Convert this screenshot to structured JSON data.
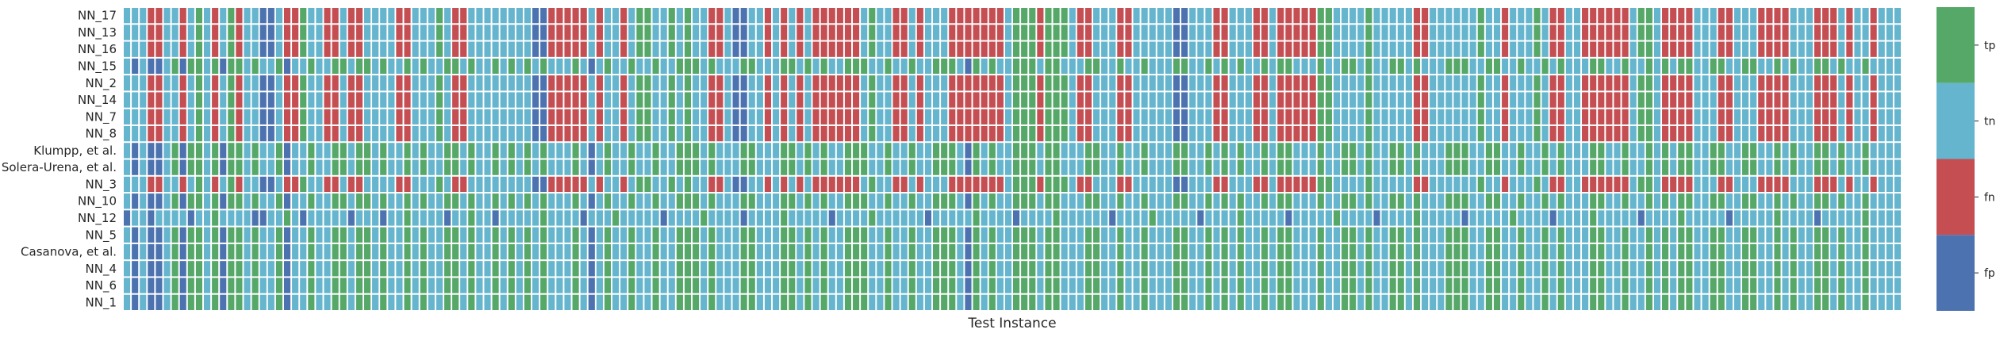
{
  "chart_data": {
    "type": "heatmap",
    "xlabel": "Test Instance",
    "rows": [
      "NN_17",
      "NN_13",
      "NN_16",
      "NN_15",
      "NN_2",
      "NN_14",
      "NN_7",
      "NN_8",
      "Klumpp, et al.",
      "Solera-Urena, et al.",
      "NN_3",
      "NN_10",
      "NN_12",
      "NN_5",
      "Casanova, et al.",
      "NN_4",
      "NN_6",
      "NN_1"
    ],
    "n_columns": 222,
    "categories": [
      "fp",
      "fn",
      "tn",
      "tp"
    ],
    "colorbar_labels": [
      "tp",
      "tn",
      "fn",
      "fp"
    ],
    "colors": {
      "tp": "#55a868",
      "tn": "#64b5cd",
      "fn": "#c44e52",
      "fp": "#4c72b0"
    },
    "cells": [
      "TTTRRTTRTGTRTGRTTBBTRRGTTRRTRRTTTTRRTTTGTRRTTTTTTTTBBRRRRRTRTTRTGGTTGTGTTRRTBBTTRTRTRTRRRRRRTGTTRRTRTTTRRRRRRRTGGGRGGGTRRTTTRRTTTTTBBTTTRRTTTRRTRRRRRGGTTTTGTTTTTRRTTTTTTGTTRTTTGTRRTTRRRRRRTGGTRRRRTTTRRTTTRRRRTTTRRRTRTTR",
      "TTTRRTTRTGTRTGRTTBBTRRGTTRRTRRTTTTRRTTTGTRRTTTTTTTTBBRRRRRTRTTRTGGTTGTGTTRRTBBTTRTRTRTRRRRRRTGTTRRTRTTTRRRRRRRTGGGRGGGTRRTTTRRTTTTTBBTTTRRTTTRRTRRRRRGGTTTTGTTTTTRRTTTTTTGTTRTTTGTRRTTRRRRRRTGGTRRRRTTTRRTTTRRRRTTTRRRTRTTR",
      "TTTRRTTRTGTRTGRTTBBTRRGTTRRTRRTTTTRRTTTGTRRTTTTTTTTBBRRRRRTRTTRTGGTTGTGTTRRTBBTTRTRTRTRRRRRRTGTTRRTRTTTRRRRRRRTGGGRGGGTRRTTTRRTTTTTBBTTTRRTTTRRTRRRRRGGTTTTGTTTTTRRTTTTTTGTTRTTTGTRRTTRRRRRRTGGTRRRRTTTRRTTTRRRRTTTRRRTRTTR",
      "TBTBBTGBGGTGBGGTGTTGBTTGTTGGTGGTGTTGTGTTGGTGTTGTGTGTGTTTGTBTGTTGTTGTTGGGTGTTTGGTTTGGTGTGTTGGGTTGTTGTTGGGTBGTGTTGGGTGGTTTGGTTGTTGTTTGGTTGTGTGTTGTGGTTTGTTGGTGTTGGTGTTTGGGTTGGTTGTTGTGTTTGGTTGTTGTGTGGTTGGTTGGTTGTGTTGGTGTTG",
      "TTTRRTTRTGTRTGRTTBBTRRGTTRRTRRTTTTRRTTTGTRRTTTTTTTTBBRRRRRTRTTRTGGTTGTGTTRRTBBTTRTRTRTRRRRRRTGTTRRTRTTTRRRRRRRTGGGRGGGTRRTTTRRTTTTTBBTTTRRTTTRRTRRRRRGGTTTTGTTTTTRRTTTTTTGTTRTTTGTRRTTRRRRRRTGGTRRRRTTTRRTTTRRRRTTTRRRTRTTR",
      "TTTRRTTRTGTRTGRTTBBTRRGTTRRTRRTTTTRRTTTGTRRTTTTTTTTBBRRRRRTRTTRTGGTTGTGTTRRTBBTTRTRTRTRRRRRRTGTTRRTRTTTRRRRRRRTGGGRGGGTRRTTTRRTTTTTBBTTTRRTTTRRTRRRRRGGTTTTGTTTTTRRTTTTTTGTTRTTTGTRRTTRRRRRRTGGTRRRRTTTRRTTTRRRRTTTRRRTRTTR",
      "TTTRRTTRTGTRTGRTTBBTRRGTTRRTRRTTTTRRTTTGTRRTTTTTTTTBBRRRRRTRTTRTGGTTGTGTTRRTBBTTRTRTRTRRRRRRTGTTRRTRTTTRRRRRRRTGGGRGGGTRRTTTRRTTTTTBBTTTRRTTTRRTRRRRRGGTTTTGTTTTTRRTTTTTTGTTRTTTGTRRTTRRRRRRTGGTRRRRTTTRRTTTRRRRTTTRRRTRTTR",
      "TTTRRTTRTGTRTGRTTBBTRRGTTRRTRRTTTTRRTTTGTRRTTTTTTTTBBRRRRRTRTTRTGGTTGTGTTRRTBBTTRTRTRTRRRRRRTGTTRRTRTTTRRRRRRRTGGGRGGGTRRTTTRRTTTTTBBTTTRRTTTRRTRRRRRGGTTTTGTTTTTRRTTTTTTGTTRTTTGTRRTTRRRRRRTGGTRRRRTTTRRTTTRRRRTTTRRRTRTTR",
      "TBTBBTGBGGTGBGGTGTTGBTTGTTGGTGGTGTTGTGTTGGTGTTGTGTGTGTTTGTBTGTTGTTGTTGGGTGTTTGGTTTGGTGTGTTGGGTTGTTGTTGGGTBGTGTTGGGTGGTTTGGTTGTTGTTTGGTTGTGTGTTGTGGTTTGTTGGTGTTGGTGTTTGGGTTGGTTGTTGTGTTTGGTTGTTGTGTGGTTGGTTGGTTGTGTTGGTGTTG",
      "TBTBBTGBGGTGBGGTGTTGBTTGTTGGTGGTGTTGTGTTGGTGTTGTGTGTGTTTGTBTGTTGTTGTTGGGTGTTTGGTTTGGTGTGTTGGGTTGTTGTTGGGTBGTGTTGGGTGGTTTGGTTGTTGTTTGGTTGTGTGTTGTGGTTTGTTGGTGTTGGTGTTTGGGTTGGTTGTTGTGTTTGGTTGTTGTGTGGTTGGTTGGTTGTGTTGGTGTTG",
      "TTTRRTTRTGTRTGRTTBBTRRGTTRRTRRTTTTRRTTTGTRRTTTTTTTTBBRRRRRTRTTRTGGTTGTGTTRRTBBTTRTRTRTRRRRRRTGTTRRTRTTTRRRRRRRTGGGRGGGTRRTTTRRTTTTTBBTTTRRTTTRRTRRRRRGGTTTTGTTTTTRRTTTTTTGTTRTTTGTRRTTRRRRRRTGGTRRRRTTTRRTTTRRRRTTTRRRTRTTR",
      "TBTBBTGBGGTGBGGTGTTGBTTGTTGGTGGTGTTGTGTTGGTGTTGTGTGTGTTTGTBTGTTGTTGTTGGGTGTTTGGTTTGGTGTGTTGGGTTGTTGTTGGGTBGTGTTGGGTGGTTTGGTTGTTGTTTGGTTGTGTGTTGTGGTTTGTTGGTGTTGGTGTTTGGGTTGGTTGTTGTGTTTGGTTGTTGTGTGGTTGGTTGGTTGTGTTGGTGTTG",
      "BTTBTTTTBTTGTTTTBBTTGTBTTTTTBTTTBTTGTTTTBTTGTTBTTTTTGTTTTBTTTGTTTTTBTTTTGTTTTBTTTTGTTTTTBTTTTGTTTTTTBTTTTTGTTTTBTTTTGTTTTTTBTTTTGTTTTTBTTTTGTTTTTBTTTTTGTTTTBTTTTGTTTTTBTTTTTGTTTTBTTTTGTTTTTBTTTTGTTTTTBTTTTTGTTTTBTTTTTG",
      "TBTBBTGBGGTGBGGTGTTGBTTGTTGGTGGTGTTGTGTTGGTGTTGTGTGTGTTTGTBTGTTGTTGTTGGGTGTTTGGTTTGGTGTGTTGGGTTGTTGTTGGGTBGTGTTGGGTGGTTTGGTTGTTGTTTGGTTGTGTGTTGTGGTTTGTTGGTGTTGGTGTTTGGGTTGGTTGTTGTGTTTGGTTGTTGTGTGGTTGGTTGGTTGTGTTGGTGTTG",
      "TBTBBTGBGGTGBGGTGTTGBTTGTTGGTGGTGTTGTGTTGGTGTTGTGTGTGTTTGTBTGTTGTTGTTGGGTGTTTGGTTTGGTGTGTTGGGTTGTTGTTGGGTBGTGTTGGGTGGTTTGGTTGTTGTTTGGTTGTGTGTTGTGGTTTGTTGGTGTTGGTGTTTGGGTTGGTTGTTGTGTTTGGTTGTTGTGTGGTTGGTTGGTTGTGTTGGTGTTG",
      "TBTBBTGBGGTGBGGTGTTGBTTGTTGGTGGTGTTGTGTTGGTGTTGTGTGTGTTTGTBTGTTGTTGTTGGGTGTTTGGTTTGGTGTGTTGGGTTGTTGTTGGGTBGTGTTGGGTGGTTTGGTTGTTGTTTGGTTGTGTGTTGTGGTTTGTTGGTGTTGGTGTTTGGGTTGGTTGTTGTGTTTGGTTGTTGTGTGGTTGGTTGGTTGTGTTGGTGTTG",
      "TBTBBTGBGGTGBGGTGTTGBTTGTTGGTGGTGTTGTGTTGGTGTTGTGTGTGTTTGTBTGTTGTTGTTGGGTGTTTGGTTTGGTGTGTTGGGTTGTTGTTGGGTBGTGTTGGGTGGTTTGGTTGTTGTTTGGTTGTGTGTTGTGGTTTGTTGGTGTTGGTGTTTGGGTTGGTTGTTGTGTTTGGTTGTTGTGTGGTTGGTTGGTTGTGTTGGTGTTG",
      "TBTBBTGBGGTGBGGTGTTGBTTGTTGGTGGTGTTGTGTTGGTGTTGTGTGTGTTTGTBTGTTGTTGTTGGGTGTTTGGTTTGGTGTGTTGGGTTGTTGTTGGGTBGTGTTGGGTGGTTTGGTTGTTGTTTGGTTGTGTGTTGTGGTTTGTTGGTGTTGGTGTTTGGGTTGGTTGTTGTGTTTGGTTGTTGTGTGGTTGGTTGGTTGTGTTGGTGTTG"
    ],
    "cell_code": {
      "G": "tp",
      "T": "tn",
      "R": "fn",
      "B": "fp"
    }
  }
}
